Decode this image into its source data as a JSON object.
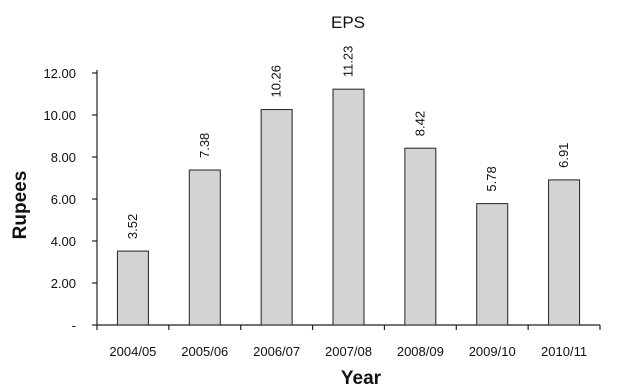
{
  "chart_data": {
    "type": "bar",
    "title": "EPS",
    "xlabel": "Year",
    "ylabel": "Rupees",
    "categories": [
      "2004/05",
      "2005/06",
      "2006/07",
      "2007/08",
      "2008/09",
      "2009/10",
      "2010/11"
    ],
    "values": [
      3.52,
      7.38,
      10.26,
      11.23,
      8.42,
      5.78,
      6.91
    ],
    "data_labels": [
      "3.52",
      "7.38",
      "10.26",
      "11.23",
      "8.42",
      "5.78",
      "6.91"
    ],
    "ylim": [
      0,
      12
    ],
    "yticks": [
      0,
      2,
      4,
      6,
      8,
      10,
      12
    ],
    "ytick_labels": [
      "-",
      "2.00",
      "4.00",
      "6.00",
      "8.00",
      "10.00",
      "12.00"
    ],
    "grid": false,
    "legend": "none",
    "colors": {
      "bar_fill": "#d3d3d3",
      "bar_stroke": "#222222"
    }
  }
}
